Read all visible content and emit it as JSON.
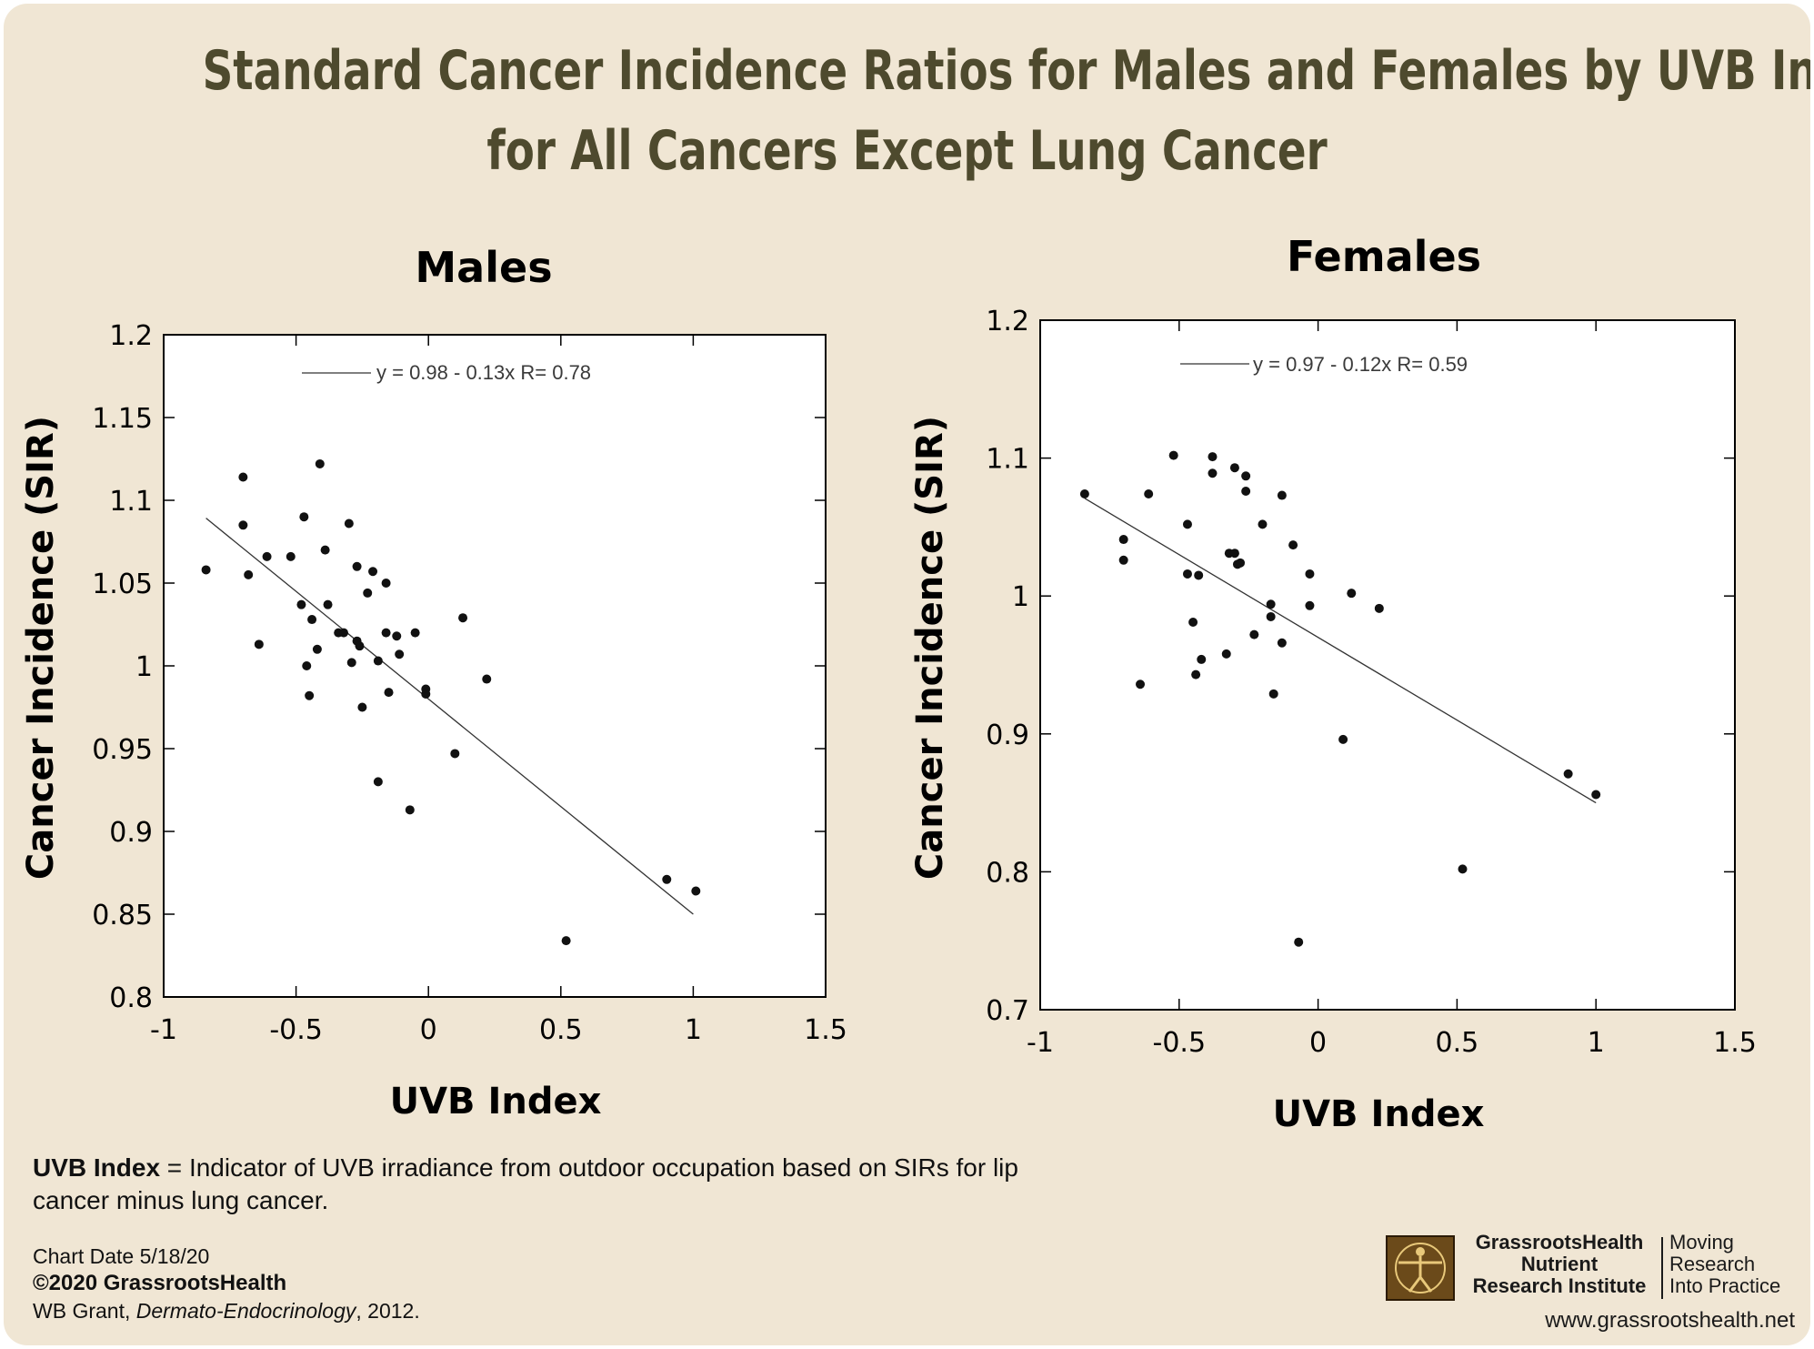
{
  "title": {
    "line1": "Standard Cancer Incidence Ratios for Males and Females by UVB Index",
    "line2": "for All Cancers Except Lung Cancer"
  },
  "chart_data": [
    {
      "type": "scatter",
      "title": "Males",
      "xlabel": "UVB Index",
      "ylabel": "Cancer Incidence (SIR)",
      "xlim": [
        -1,
        1.5
      ],
      "ylim": [
        0.8,
        1.2
      ],
      "xticks": [
        -1,
        -0.5,
        0,
        0.5,
        1,
        1.5
      ],
      "xtick_labels": [
        "-1",
        "-0.5",
        "0",
        "0.5",
        "1",
        "1.5"
      ],
      "yticks": [
        0.8,
        0.85,
        0.9,
        0.95,
        1,
        1.05,
        1.1,
        1.15,
        1.2
      ],
      "ytick_labels": [
        "0.8",
        "0.85",
        "0.9",
        "0.95",
        "1",
        "1.05",
        "1.1",
        "1.15",
        "1.2"
      ],
      "grid": false,
      "legend": {
        "text": "y = 0.98 - 0.13x   R= 0.78",
        "placement": "top-center"
      },
      "fit": {
        "intercept": 0.98,
        "slope": -0.13,
        "x_range": [
          -0.84,
          1.0
        ]
      },
      "points": [
        {
          "x": -0.84,
          "y": 1.058
        },
        {
          "x": -0.7,
          "y": 1.114
        },
        {
          "x": -0.7,
          "y": 1.085
        },
        {
          "x": -0.68,
          "y": 1.055
        },
        {
          "x": -0.64,
          "y": 1.013
        },
        {
          "x": -0.61,
          "y": 1.066
        },
        {
          "x": -0.52,
          "y": 1.066
        },
        {
          "x": -0.48,
          "y": 1.037
        },
        {
          "x": -0.47,
          "y": 1.09
        },
        {
          "x": -0.46,
          "y": 1.0
        },
        {
          "x": -0.45,
          "y": 0.982
        },
        {
          "x": -0.44,
          "y": 1.028
        },
        {
          "x": -0.42,
          "y": 1.01
        },
        {
          "x": -0.41,
          "y": 1.122
        },
        {
          "x": -0.39,
          "y": 1.07
        },
        {
          "x": -0.38,
          "y": 1.037
        },
        {
          "x": -0.34,
          "y": 1.02
        },
        {
          "x": -0.32,
          "y": 1.02
        },
        {
          "x": -0.3,
          "y": 1.086
        },
        {
          "x": -0.29,
          "y": 1.002
        },
        {
          "x": -0.27,
          "y": 1.06
        },
        {
          "x": -0.27,
          "y": 1.015
        },
        {
          "x": -0.26,
          "y": 1.012
        },
        {
          "x": -0.25,
          "y": 0.975
        },
        {
          "x": -0.23,
          "y": 1.044
        },
        {
          "x": -0.21,
          "y": 1.057
        },
        {
          "x": -0.19,
          "y": 1.003
        },
        {
          "x": -0.19,
          "y": 0.93
        },
        {
          "x": -0.16,
          "y": 1.05
        },
        {
          "x": -0.16,
          "y": 1.02
        },
        {
          "x": -0.15,
          "y": 0.984
        },
        {
          "x": -0.12,
          "y": 1.018
        },
        {
          "x": -0.11,
          "y": 1.007
        },
        {
          "x": -0.07,
          "y": 0.913
        },
        {
          "x": -0.05,
          "y": 1.02
        },
        {
          "x": -0.01,
          "y": 0.986
        },
        {
          "x": -0.01,
          "y": 0.983
        },
        {
          "x": 0.1,
          "y": 0.947
        },
        {
          "x": 0.13,
          "y": 1.029
        },
        {
          "x": 0.22,
          "y": 0.992
        },
        {
          "x": 0.52,
          "y": 0.834
        },
        {
          "x": 0.9,
          "y": 0.871
        },
        {
          "x": 1.01,
          "y": 0.864
        }
      ]
    },
    {
      "type": "scatter",
      "title": "Females",
      "xlabel": "UVB Index",
      "ylabel": "Cancer Incidence (SIR)",
      "xlim": [
        -1,
        1.5
      ],
      "ylim": [
        0.7,
        1.2
      ],
      "xticks": [
        -1,
        -0.5,
        0,
        0.5,
        1,
        1.5
      ],
      "xtick_labels": [
        "-1",
        "-0.5",
        "0",
        "0.5",
        "1",
        "1.5"
      ],
      "yticks": [
        0.7,
        0.8,
        0.9,
        1,
        1.1,
        1.2
      ],
      "ytick_labels": [
        "0.7",
        "0.8",
        "0.9",
        "1",
        "1.1",
        "1.2"
      ],
      "grid": false,
      "legend": {
        "text": "y = 0.97 - 0.12x   R= 0.59",
        "placement": "top-center"
      },
      "fit": {
        "intercept": 0.97,
        "slope": -0.12,
        "x_range": [
          -0.84,
          1.0
        ]
      },
      "points": [
        {
          "x": -0.84,
          "y": 1.074
        },
        {
          "x": -0.7,
          "y": 1.041
        },
        {
          "x": -0.7,
          "y": 1.026
        },
        {
          "x": -0.64,
          "y": 0.936
        },
        {
          "x": -0.61,
          "y": 1.074
        },
        {
          "x": -0.52,
          "y": 1.102
        },
        {
          "x": -0.47,
          "y": 1.052
        },
        {
          "x": -0.47,
          "y": 1.016
        },
        {
          "x": -0.45,
          "y": 0.981
        },
        {
          "x": -0.44,
          "y": 0.943
        },
        {
          "x": -0.43,
          "y": 1.015
        },
        {
          "x": -0.42,
          "y": 0.954
        },
        {
          "x": -0.38,
          "y": 1.101
        },
        {
          "x": -0.38,
          "y": 1.089
        },
        {
          "x": -0.33,
          "y": 0.958
        },
        {
          "x": -0.32,
          "y": 1.031
        },
        {
          "x": -0.3,
          "y": 1.093
        },
        {
          "x": -0.3,
          "y": 1.031
        },
        {
          "x": -0.29,
          "y": 1.023
        },
        {
          "x": -0.28,
          "y": 1.024
        },
        {
          "x": -0.26,
          "y": 1.087
        },
        {
          "x": -0.26,
          "y": 1.076
        },
        {
          "x": -0.23,
          "y": 0.972
        },
        {
          "x": -0.2,
          "y": 1.052
        },
        {
          "x": -0.17,
          "y": 0.994
        },
        {
          "x": -0.17,
          "y": 0.985
        },
        {
          "x": -0.16,
          "y": 0.929
        },
        {
          "x": -0.13,
          "y": 1.073
        },
        {
          "x": -0.13,
          "y": 0.966
        },
        {
          "x": -0.09,
          "y": 1.037
        },
        {
          "x": -0.07,
          "y": 0.749
        },
        {
          "x": -0.03,
          "y": 1.016
        },
        {
          "x": -0.03,
          "y": 0.993
        },
        {
          "x": 0.09,
          "y": 0.896
        },
        {
          "x": 0.12,
          "y": 1.002
        },
        {
          "x": 0.22,
          "y": 0.991
        },
        {
          "x": 0.52,
          "y": 0.802
        },
        {
          "x": 0.9,
          "y": 0.871
        },
        {
          "x": 1.0,
          "y": 0.856
        }
      ]
    }
  ],
  "footnote": {
    "term": "UVB Index",
    "definition": " = Indicator of UVB irradiance from outdoor occupation based on SIRs for lip cancer minus lung cancer."
  },
  "credits": {
    "chart_date": "Chart Date 5/18/20",
    "copyright": "©2020 GrassrootsHealth",
    "citation_author": "WB Grant, ",
    "citation_journal": "Dermato-Endocrinology",
    "citation_year": ", 2012."
  },
  "logo": {
    "name_line1": "GrassrootsHealth",
    "name_line2": "Nutrient",
    "name_line3": "Research Institute",
    "tag_line1": "Moving",
    "tag_line2": "Research",
    "tag_line3": "Into Practice"
  },
  "website": "www.grassrootshealth.net"
}
